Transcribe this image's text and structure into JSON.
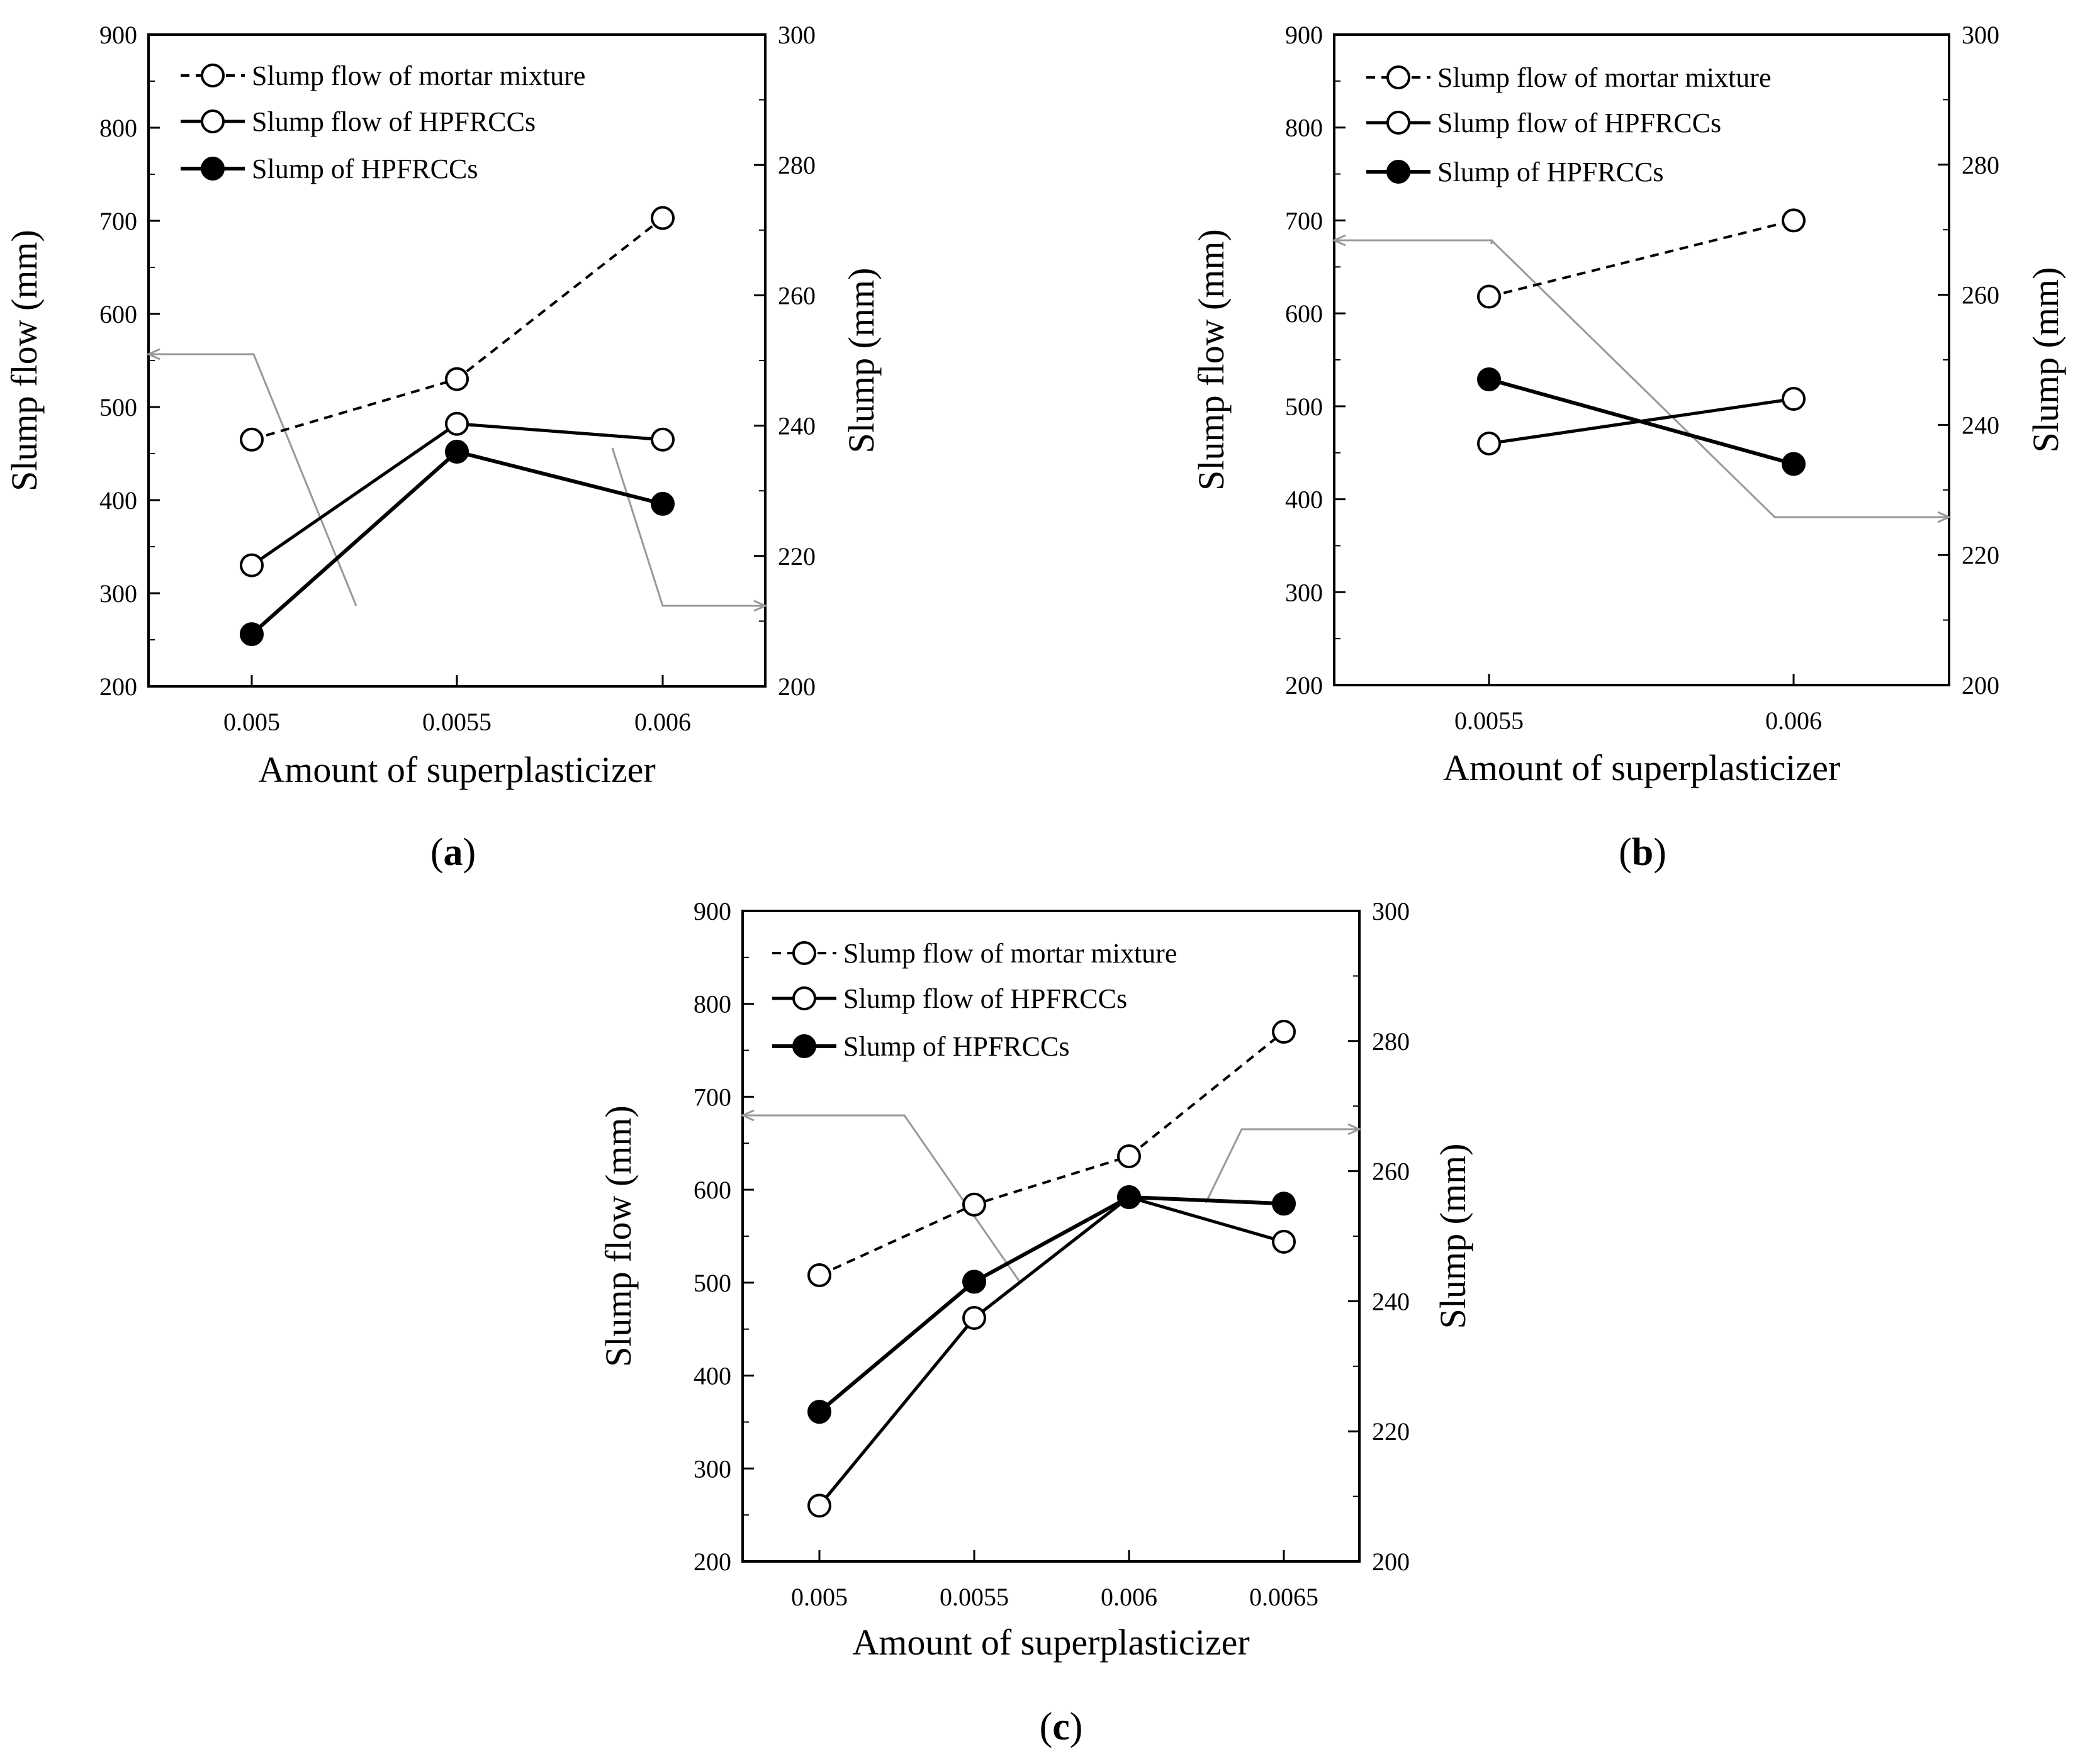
{
  "chart_data": [
    {
      "type": "line",
      "panel_label": "a",
      "categories": [
        "0.005",
        "0.0055",
        "0.006"
      ],
      "xlabel": "Amount of superplasticizer",
      "ylabel": "Slump flow (mm)",
      "y2label": "Slump (mm)",
      "ylim": [
        200,
        900
      ],
      "y2lim": [
        200,
        300
      ],
      "yticks": [
        "200",
        "300",
        "400",
        "500",
        "600",
        "700",
        "800",
        "900"
      ],
      "y2ticks": [
        "200",
        "220",
        "240",
        "260",
        "280",
        "300"
      ],
      "series": [
        {
          "name": "Slump flow of mortar mixture",
          "axis": "left",
          "style": "dashed",
          "marker": "open",
          "values": [
            465,
            530,
            703
          ]
        },
        {
          "name": "Slump flow of HPFRCCs",
          "axis": "left",
          "style": "solid",
          "marker": "open",
          "values": [
            330,
            482,
            465
          ]
        },
        {
          "name": "Slump of HPFRCCs",
          "axis": "right",
          "style": "solid-thick",
          "marker": "filled",
          "values": [
            208,
            236,
            228
          ]
        }
      ]
    },
    {
      "type": "line",
      "panel_label": "b",
      "categories": [
        "0.0055",
        "0.006"
      ],
      "xlabel": "Amount of superplasticizer",
      "ylabel": "Slump flow (mm)",
      "y2label": "Slump (mm)",
      "ylim": [
        200,
        900
      ],
      "y2lim": [
        200,
        300
      ],
      "yticks": [
        "200",
        "300",
        "400",
        "500",
        "600",
        "700",
        "800",
        "900"
      ],
      "y2ticks": [
        "200",
        "220",
        "240",
        "260",
        "280",
        "300"
      ],
      "series": [
        {
          "name": "Slump flow of mortar mixture",
          "axis": "left",
          "style": "dashed",
          "marker": "open",
          "values": [
            618,
            700
          ]
        },
        {
          "name": "Slump flow of HPFRCCs",
          "axis": "left",
          "style": "solid",
          "marker": "open",
          "values": [
            460,
            508
          ]
        },
        {
          "name": "Slump of HPFRCCs",
          "axis": "right",
          "style": "solid-thick",
          "marker": "filled",
          "values": [
            247,
            234
          ]
        }
      ]
    },
    {
      "type": "line",
      "panel_label": "c",
      "categories": [
        "0.005",
        "0.0055",
        "0.006",
        "0.0065"
      ],
      "xlabel": "Amount of superplasticizer",
      "ylabel": "Slump flow (mm)",
      "y2label": "Slump (mm)",
      "ylim": [
        200,
        900
      ],
      "y2lim": [
        200,
        300
      ],
      "yticks": [
        "200",
        "300",
        "400",
        "500",
        "600",
        "700",
        "800",
        "900"
      ],
      "y2ticks": [
        "200",
        "220",
        "240",
        "260",
        "280",
        "300"
      ],
      "series": [
        {
          "name": "Slump flow of mortar mixture",
          "axis": "left",
          "style": "dashed",
          "marker": "open",
          "values": [
            508,
            584,
            636,
            770
          ]
        },
        {
          "name": "Slump flow of HPFRCCs",
          "axis": "left",
          "style": "solid",
          "marker": "open",
          "values": [
            260,
            462,
            592,
            544
          ]
        },
        {
          "name": "Slump of HPFRCCs",
          "axis": "right",
          "style": "solid-thick",
          "marker": "filled",
          "values": [
            223,
            243,
            256,
            255
          ]
        }
      ]
    }
  ],
  "captions": {
    "a": {
      "open": "(",
      "letter": "a",
      "close": ")"
    },
    "b": {
      "open": "(",
      "letter": "b",
      "close": ")"
    },
    "c": {
      "open": "(",
      "letter": "c",
      "close": ")"
    }
  }
}
